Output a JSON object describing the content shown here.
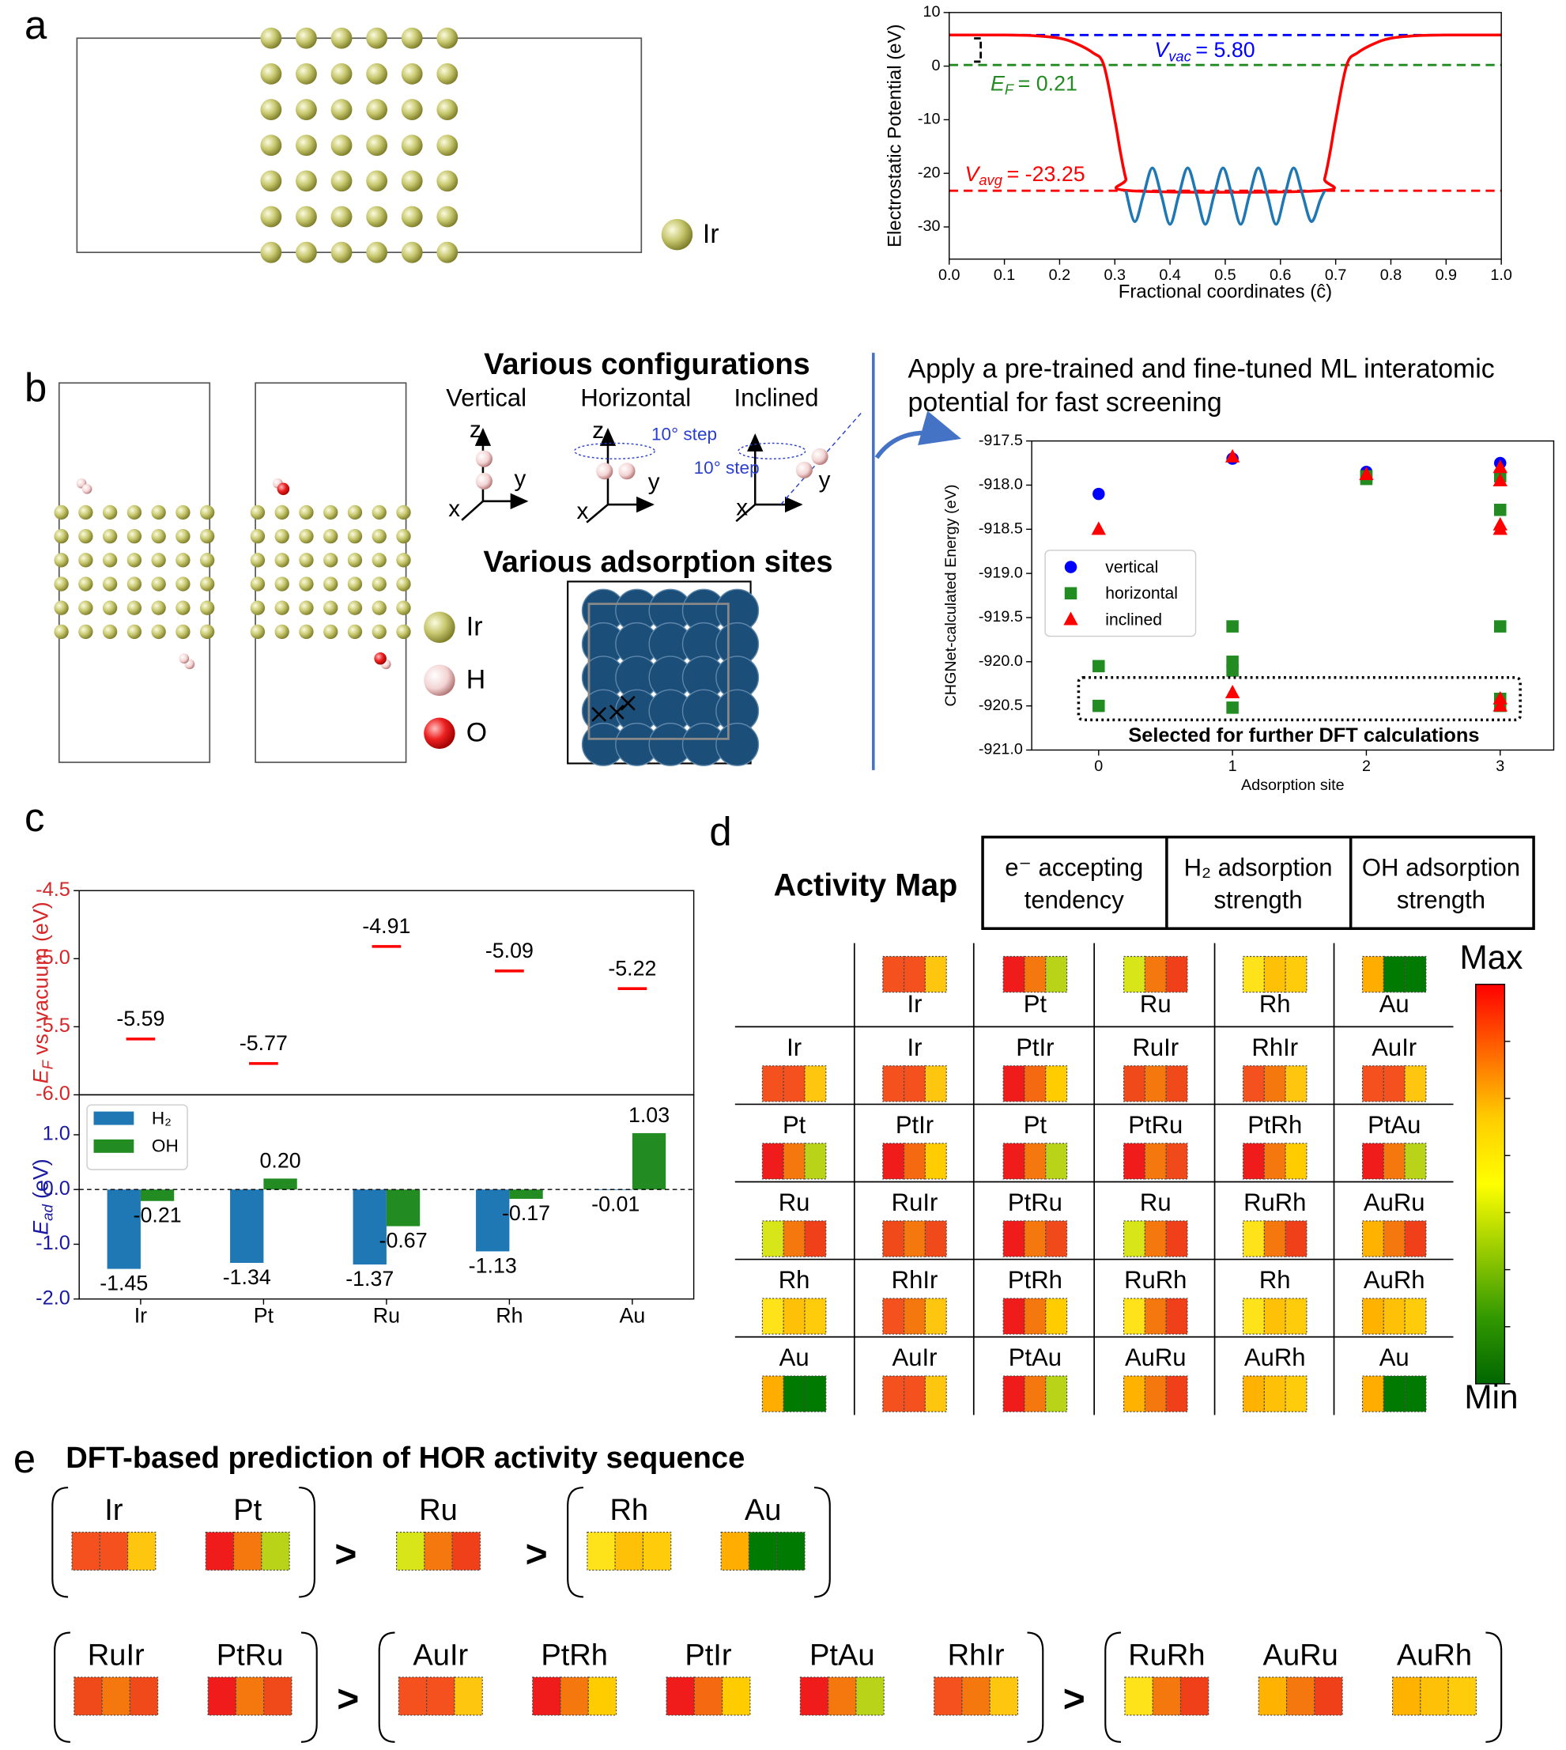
{
  "panel_labels": [
    "a",
    "b",
    "c",
    "d",
    "e"
  ],
  "panel_a": {
    "legend": "Ir"
  },
  "panel_b": {
    "configurations_title": "Various configurations",
    "configurations": [
      "Vertical",
      "Horizontal",
      "Inclined"
    ],
    "axes": [
      "x",
      "y",
      "z"
    ],
    "step_label": "10° step",
    "sites_title": "Various adsorption sites",
    "legend": [
      "Ir",
      "H",
      "O"
    ]
  },
  "chart_data": [
    {
      "type": "line",
      "xlabel": "Fractional coordinates (ĉ)",
      "ylabel": "Electrostatic Potential (eV)",
      "xlim": [
        0,
        1
      ],
      "ylim": [
        -36,
        10
      ],
      "xticks": [
        {
          "value": 0,
          "label": "0.0"
        },
        0.1,
        0.2,
        0.3,
        0.4,
        0.5,
        0.6,
        0.7,
        0.8,
        0.9,
        {
          "value": 1,
          "label": "1.0"
        }
      ],
      "yticks": [
        10,
        0,
        -10,
        -20,
        -30
      ],
      "series": [
        {
          "color": "#ff0000",
          "x": [
            0,
            0.1,
            0.15,
            0.2,
            0.23,
            0.26,
            0.28,
            0.3,
            0.31,
            0.32,
            0.33,
            0.67,
            0.68,
            0.69,
            0.7,
            0.72,
            0.74,
            0.77,
            0.8,
            0.85,
            0.9,
            1
          ],
          "values": [
            5.8,
            5.8,
            5.7,
            5.2,
            4.2,
            2.5,
            0.2,
            -10,
            -16,
            -21,
            -23.25,
            -23.25,
            -21,
            -16,
            -10,
            0.2,
            2.5,
            4.2,
            5.2,
            5.7,
            5.8,
            5.8
          ]
        },
        {
          "color": "#1f77b4",
          "x": [
            0.32,
            0.336,
            0.352,
            0.368,
            0.384,
            0.4,
            0.416,
            0.432,
            0.448,
            0.464,
            0.48,
            0.496,
            0.512,
            0.528,
            0.544,
            0.56,
            0.576,
            0.592,
            0.608,
            0.624,
            0.64,
            0.656,
            0.672,
            0.68
          ],
          "values": [
            -23.25,
            -29,
            -24,
            -19,
            -24,
            -29.5,
            -24,
            -19,
            -24,
            -29.5,
            -24,
            -19,
            -24,
            -29.5,
            -24,
            -19,
            -24,
            -29.5,
            -24,
            -19,
            -24,
            -29,
            -25,
            -23.25
          ]
        }
      ],
      "reference_lines": [
        {
          "symbol": "V",
          "subscript": "vac",
          "value": 5.8,
          "value_label": "= 5.80",
          "color": "#0000ff"
        },
        {
          "symbol": "E",
          "subscript": "F",
          "value": 0.21,
          "value_label": "= 0.21",
          "color": "#228b22"
        },
        {
          "symbol": "V",
          "subscript": "avg",
          "value": -23.25,
          "value_label": "= -23.25",
          "color": "#ff0000"
        }
      ]
    },
    {
      "type": "scatter",
      "title": [
        "Apply a pre-trained and fine-tuned ML interatomic",
        "potential for fast screening"
      ],
      "xlabel": "Adsorption site",
      "ylabel": "CHGNet-calculated Energy (eV)",
      "xlim": [
        -0.5,
        3.4
      ],
      "ylim": [
        -921,
        -917.5
      ],
      "xticks": [
        0,
        1,
        2,
        3
      ],
      "yticks": [
        -917.5,
        {
          "value": -918,
          "label": "-918.0"
        },
        -918.5,
        {
          "value": -919,
          "label": "-919.0"
        },
        -919.5,
        {
          "value": -920,
          "label": "-920.0"
        },
        -920.5,
        {
          "value": -921,
          "label": "-921.0"
        }
      ],
      "legend": "center left",
      "annotation": "Selected for further DFT calculations",
      "series": [
        {
          "name": "vertical",
          "color": "#0000ff",
          "marker": "circle",
          "x": [
            0,
            1,
            2,
            3
          ],
          "values": [
            -918.1,
            -917.7,
            -917.85,
            -917.75
          ]
        },
        {
          "name": "horizontal",
          "color": "#228b22",
          "marker": "square",
          "x": [
            0,
            0,
            1,
            1,
            1,
            1,
            2,
            2,
            3,
            3,
            3,
            3,
            3
          ],
          "values": [
            -920.05,
            -920.5,
            -919.6,
            -920,
            -920.1,
            -920.52,
            -917.9,
            -917.93,
            -917.9,
            -918.28,
            -919.6,
            -920.42,
            -920.5
          ]
        },
        {
          "name": "inclined",
          "color": "#ff0000",
          "marker": "triangle",
          "x": [
            0,
            1,
            1,
            2,
            3,
            3,
            3,
            3,
            3,
            3
          ],
          "values": [
            -918.5,
            -917.68,
            -920.35,
            -917.88,
            -917.8,
            -917.95,
            -918.45,
            -918.5,
            -920.42,
            -920.5
          ]
        }
      ]
    },
    {
      "type": "marker",
      "ylabel": {
        "symbol": "E",
        "subscript": "F",
        "text": "vs. vacuum (eV)"
      },
      "label_color": "#d62728",
      "color": "#ff0000",
      "values": [
        -5.59,
        -5.77,
        -4.91,
        -5.09,
        -5.22
      ],
      "ylim": [
        -6,
        -4.5
      ],
      "yticks": [
        -4.5,
        {
          "value": -5,
          "label": "-5.0"
        },
        -5.5,
        {
          "value": -6,
          "label": "-6.0"
        }
      ]
    },
    {
      "type": "bar",
      "ylabel": {
        "symbol": "E",
        "subscript": "ad",
        "text": "(eV)"
      },
      "label_color": "#1a1aa0",
      "categories": [
        "Ir",
        "Pt",
        "Ru",
        "Rh",
        "Au"
      ],
      "ylim": [
        -2,
        1.73
      ],
      "yticks": [
        {
          "value": 1,
          "label": "1.0"
        },
        {
          "value": 0,
          "label": "0.0"
        },
        {
          "value": -1,
          "label": "-1.0"
        },
        {
          "value": -2,
          "label": "-2.0"
        }
      ],
      "legend": "upper left",
      "series": [
        {
          "name": "H₂",
          "color": "#1f77b4",
          "values": [
            -1.45,
            -1.34,
            -1.37,
            -1.13,
            -0.01
          ],
          "value_labels": [
            "-1.45",
            "-1.34",
            "-1.37",
            "-1.13",
            "-0.01"
          ]
        },
        {
          "name": "OH",
          "color": "#228b22",
          "values": [
            -0.21,
            0.2,
            -0.67,
            -0.17,
            1.03
          ],
          "value_labels": [
            "-0.21",
            "0.20",
            "-0.67",
            "-0.17",
            "1.03"
          ]
        }
      ]
    }
  ],
  "activity_map": {
    "title": "Activity Map",
    "headers": [
      [
        "e⁻ accepting",
        "tendency"
      ],
      [
        "H₂ adsorption",
        "strength"
      ],
      [
        "OH adsorption",
        "strength"
      ]
    ],
    "elements": [
      {
        "label": "Ir",
        "colors": [
          "#f4511e",
          "#f4511e",
          "#ffc60f"
        ]
      },
      {
        "label": "Pt",
        "colors": [
          "#f01c1c",
          "#f5780f",
          "#b9d418"
        ]
      },
      {
        "label": "Ru",
        "colors": [
          "#d8e619",
          "#f5780f",
          "#f0401a"
        ]
      },
      {
        "label": "Rh",
        "colors": [
          "#ffe31a",
          "#ffc107",
          "#ffcc0b"
        ]
      },
      {
        "label": "Au",
        "colors": [
          "#ffae00",
          "#007a00",
          "#007a00"
        ]
      }
    ],
    "cells": [
      [
        {
          "label": "Ir",
          "colors": [
            "#f4511e",
            "#f4511e",
            "#ffc60f"
          ]
        },
        {
          "label": "PtIr",
          "colors": [
            "#f01c1c",
            "#f56a10",
            "#ffcc00"
          ]
        },
        {
          "label": "RuIr",
          "colors": [
            "#f04a1a",
            "#f5780f",
            "#f04a1a"
          ]
        },
        {
          "label": "RhIr",
          "colors": [
            "#f4511e",
            "#f5780f",
            "#ffc60f"
          ]
        },
        {
          "label": "AuIr",
          "colors": [
            "#f4511e",
            "#f4511e",
            "#ffc60f"
          ]
        }
      ],
      [
        {
          "label": "PtIr",
          "colors": [
            "#f01c1c",
            "#f56a10",
            "#ffcc00"
          ]
        },
        {
          "label": "Pt",
          "colors": [
            "#f01c1c",
            "#f5780f",
            "#b9d418"
          ]
        },
        {
          "label": "PtRu",
          "colors": [
            "#f01c1c",
            "#f5780f",
            "#f04a1a"
          ]
        },
        {
          "label": "PtRh",
          "colors": [
            "#f01c1c",
            "#f5780f",
            "#ffcc00"
          ]
        },
        {
          "label": "PtAu",
          "colors": [
            "#f01c1c",
            "#f5780f",
            "#b9d418"
          ]
        }
      ],
      [
        {
          "label": "RuIr",
          "colors": [
            "#f04a1a",
            "#f5780f",
            "#f04a1a"
          ]
        },
        {
          "label": "PtRu",
          "colors": [
            "#f01c1c",
            "#f5780f",
            "#f04a1a"
          ]
        },
        {
          "label": "Ru",
          "colors": [
            "#d8e619",
            "#f5780f",
            "#f0401a"
          ]
        },
        {
          "label": "RuRh",
          "colors": [
            "#ffe31a",
            "#f5780f",
            "#f0401a"
          ]
        },
        {
          "label": "AuRu",
          "colors": [
            "#ffb300",
            "#f5780f",
            "#f0401a"
          ]
        }
      ],
      [
        {
          "label": "RhIr",
          "colors": [
            "#f4511e",
            "#f5780f",
            "#ffc60f"
          ]
        },
        {
          "label": "PtRh",
          "colors": [
            "#f01c1c",
            "#f5780f",
            "#ffcc00"
          ]
        },
        {
          "label": "RuRh",
          "colors": [
            "#ffe31a",
            "#f5780f",
            "#f0401a"
          ]
        },
        {
          "label": "Rh",
          "colors": [
            "#ffe31a",
            "#ffc107",
            "#ffcc0b"
          ]
        },
        {
          "label": "AuRh",
          "colors": [
            "#ffb300",
            "#ffc107",
            "#ffcc0b"
          ]
        }
      ],
      [
        {
          "label": "AuIr",
          "colors": [
            "#f4511e",
            "#f4511e",
            "#ffc60f"
          ]
        },
        {
          "label": "PtAu",
          "colors": [
            "#f01c1c",
            "#f5780f",
            "#b9d418"
          ]
        },
        {
          "label": "AuRu",
          "colors": [
            "#ffb300",
            "#f5780f",
            "#f0401a"
          ]
        },
        {
          "label": "AuRh",
          "colors": [
            "#ffb300",
            "#ffc107",
            "#ffcc0b"
          ]
        },
        {
          "label": "Au",
          "colors": [
            "#ffae00",
            "#007a00",
            "#007a00"
          ]
        }
      ]
    ],
    "colorbar": {
      "max_label": "Max",
      "min_label": "Min",
      "colors": [
        "#ff0000",
        "#ff6600",
        "#ffcc00",
        "#ffff00",
        "#99cc00",
        "#339900",
        "#006600"
      ]
    }
  },
  "sequence": {
    "title": "DFT-based prediction of HOR activity sequence",
    "separator": ">",
    "rows": [
      [
        [
          {
            "label": "Ir",
            "colors": [
              "#f4511e",
              "#f4511e",
              "#ffc60f"
            ]
          },
          {
            "label": "Pt",
            "colors": [
              "#f01c1c",
              "#f5780f",
              "#b9d418"
            ]
          }
        ],
        [
          {
            "label": "Ru",
            "colors": [
              "#d8e619",
              "#f5780f",
              "#f0401a"
            ]
          }
        ],
        [
          {
            "label": "Rh",
            "colors": [
              "#ffe31a",
              "#ffc107",
              "#ffcc0b"
            ]
          },
          {
            "label": "Au",
            "colors": [
              "#ffae00",
              "#007a00",
              "#007a00"
            ]
          }
        ]
      ],
      [
        [
          {
            "label": "RuIr",
            "colors": [
              "#f04a1a",
              "#f5780f",
              "#f04a1a"
            ]
          },
          {
            "label": "PtRu",
            "colors": [
              "#f01c1c",
              "#f5780f",
              "#f04a1a"
            ]
          }
        ],
        [
          {
            "label": "AuIr",
            "colors": [
              "#f4511e",
              "#f4511e",
              "#ffc60f"
            ]
          },
          {
            "label": "PtRh",
            "colors": [
              "#f01c1c",
              "#f5780f",
              "#ffcc00"
            ]
          },
          {
            "label": "PtIr",
            "colors": [
              "#f01c1c",
              "#f56a10",
              "#ffcc00"
            ]
          },
          {
            "label": "PtAu",
            "colors": [
              "#f01c1c",
              "#f5780f",
              "#b9d418"
            ]
          },
          {
            "label": "RhIr",
            "colors": [
              "#f4511e",
              "#f5780f",
              "#ffc60f"
            ]
          }
        ],
        [
          {
            "label": "RuRh",
            "colors": [
              "#ffe31a",
              "#f5780f",
              "#f0401a"
            ]
          },
          {
            "label": "AuRu",
            "colors": [
              "#ffb300",
              "#f5780f",
              "#f0401a"
            ]
          },
          {
            "label": "AuRh",
            "colors": [
              "#ffb300",
              "#ffc107",
              "#ffcc0b"
            ]
          }
        ]
      ]
    ]
  }
}
